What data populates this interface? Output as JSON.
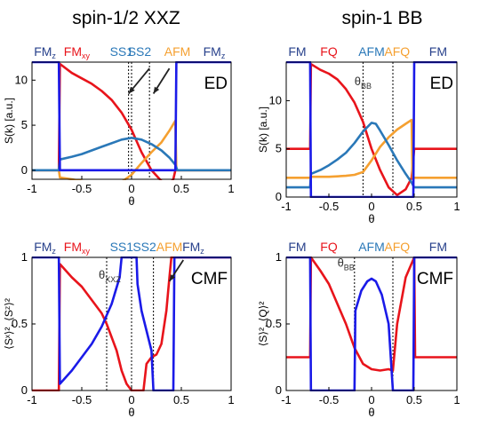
{
  "column_titles": [
    "spin-1/2 XXZ",
    "spin-1 BB"
  ],
  "colors": {
    "red": "#e8141b",
    "orange": "#f5a030",
    "steel": "#2a78b8",
    "blue": "#1a1ae8",
    "navy": "#27408b",
    "black": "#000000"
  },
  "chart_data": [
    {
      "type": "line",
      "panel": "top-left",
      "tag": "ED",
      "ylabel": "S(k) [a.u.]",
      "xlabel": "θ",
      "xlim": [
        -1,
        1
      ],
      "ylim": [
        -1,
        12
      ],
      "xticks": [
        -1,
        -0.5,
        0,
        0.5,
        1
      ],
      "xtick_labels": [
        "-1",
        "-0.5",
        "0",
        "0.5",
        "1"
      ],
      "yticks": [
        0,
        5,
        10
      ],
      "ytick_labels": [
        "0",
        "5",
        "10"
      ],
      "phases": [
        {
          "label": "FM",
          "sub": "z",
          "x": -0.87,
          "color": "#27408b"
        },
        {
          "label": "FM",
          "sub": "xy",
          "x": -0.55,
          "color": "#e8141b"
        },
        {
          "label": "SS1",
          "sub": "",
          "x": -0.1,
          "color": "#2a78b8"
        },
        {
          "label": "SS2",
          "sub": "",
          "x": 0.08,
          "color": "#2a78b8"
        },
        {
          "label": "AFM",
          "sub": "",
          "x": 0.46,
          "color": "#f5a030"
        },
        {
          "label": "FM",
          "sub": "z",
          "x": 0.83,
          "color": "#27408b"
        }
      ],
      "vlines": [
        -0.03,
        0.0,
        0.18
      ],
      "arrows": [
        {
          "from": [
            0.18,
            11.3
          ],
          "to": [
            -0.03,
            8.5
          ]
        },
        {
          "from": [
            0.38,
            11.3
          ],
          "to": [
            0.22,
            8.5
          ]
        }
      ],
      "series": [
        {
          "color": "#e8141b",
          "points": [
            [
              -1,
              0
            ],
            [
              -0.73,
              0
            ],
            [
              -0.72,
              11.8
            ],
            [
              -0.6,
              10.8
            ],
            [
              -0.5,
              10.2
            ],
            [
              -0.4,
              9.6
            ],
            [
              -0.3,
              8.8
            ],
            [
              -0.2,
              7.8
            ],
            [
              -0.1,
              6.4
            ],
            [
              0,
              4.5
            ],
            [
              0.1,
              2.0
            ],
            [
              0.2,
              0.0
            ],
            [
              0.3,
              -1.2
            ],
            [
              0.38,
              -1.5
            ],
            [
              0.42,
              -1.0
            ],
            [
              0.44,
              0
            ],
            [
              1,
              0
            ]
          ]
        },
        {
          "color": "#f5a030",
          "points": [
            [
              -1,
              0
            ],
            [
              -0.73,
              0
            ],
            [
              -0.72,
              -0.8
            ],
            [
              -0.6,
              -1.0
            ],
            [
              -0.5,
              -1.2
            ],
            [
              -0.4,
              -1.4
            ],
            [
              -0.3,
              -1.6
            ],
            [
              -0.2,
              -1.6
            ],
            [
              -0.1,
              -1.3
            ],
            [
              0,
              -0.5
            ],
            [
              0.1,
              0.8
            ],
            [
              0.2,
              2.0
            ],
            [
              0.3,
              3.1
            ],
            [
              0.38,
              4.4
            ],
            [
              0.44,
              5.5
            ],
            [
              0.45,
              0
            ],
            [
              1,
              0
            ]
          ]
        },
        {
          "color": "#2a78b8",
          "points": [
            [
              -1,
              0
            ],
            [
              -0.73,
              0
            ],
            [
              -0.72,
              1.2
            ],
            [
              -0.6,
              1.5
            ],
            [
              -0.5,
              1.8
            ],
            [
              -0.4,
              2.2
            ],
            [
              -0.3,
              2.6
            ],
            [
              -0.2,
              3.0
            ],
            [
              -0.1,
              3.4
            ],
            [
              0,
              3.6
            ],
            [
              0.1,
              3.4
            ],
            [
              0.2,
              2.9
            ],
            [
              0.3,
              2.2
            ],
            [
              0.38,
              1.4
            ],
            [
              0.44,
              0.6
            ],
            [
              0.46,
              0
            ],
            [
              1,
              0
            ]
          ]
        },
        {
          "color": "#1a1ae8",
          "points": [
            [
              -1,
              12
            ],
            [
              -0.73,
              12
            ],
            [
              -0.72,
              0
            ],
            [
              0.44,
              0
            ],
            [
              0.45,
              12
            ],
            [
              1,
              12
            ]
          ]
        }
      ],
      "notes": []
    },
    {
      "type": "line",
      "panel": "top-right",
      "tag": "ED",
      "ylabel": "S(k) [a.u.]",
      "xlabel": "θ",
      "xlim": [
        -1,
        1
      ],
      "ylim": [
        0,
        14
      ],
      "xticks": [
        -1,
        -0.5,
        0,
        0.5,
        1
      ],
      "xtick_labels": [
        "-1",
        "-0.5",
        "0",
        "0.5",
        "1"
      ],
      "yticks": [
        0,
        5,
        10
      ],
      "ytick_labels": [
        "0",
        "5",
        "10"
      ],
      "phases": [
        {
          "label": "FM",
          "sub": "",
          "x": -0.87,
          "color": "#27408b"
        },
        {
          "label": "FQ",
          "sub": "",
          "x": -0.5,
          "color": "#e8141b"
        },
        {
          "label": "AFM",
          "sub": "",
          "x": 0.0,
          "color": "#2a78b8"
        },
        {
          "label": "AFQ",
          "sub": "",
          "x": 0.3,
          "color": "#f5a030"
        },
        {
          "label": "FM",
          "sub": "",
          "x": 0.78,
          "color": "#27408b"
        }
      ],
      "vlines": [
        -0.1,
        0.25
      ],
      "arrows": [],
      "series": [
        {
          "color": "#e8141b",
          "points": [
            [
              -1,
              5
            ],
            [
              -0.72,
              5
            ],
            [
              -0.71,
              13.8
            ],
            [
              -0.6,
              13.2
            ],
            [
              -0.5,
              12.8
            ],
            [
              -0.4,
              12.2
            ],
            [
              -0.3,
              11.2
            ],
            [
              -0.2,
              9.8
            ],
            [
              -0.1,
              7.8
            ],
            [
              0,
              5.0
            ],
            [
              0.1,
              2.8
            ],
            [
              0.2,
              1.0
            ],
            [
              0.3,
              0.2
            ],
            [
              0.4,
              0.8
            ],
            [
              0.47,
              2.0
            ],
            [
              0.5,
              5
            ],
            [
              1,
              5
            ]
          ]
        },
        {
          "color": "#f5a030",
          "points": [
            [
              -1,
              2
            ],
            [
              -0.72,
              2
            ],
            [
              -0.71,
              2.1
            ],
            [
              -0.5,
              2.1
            ],
            [
              -0.3,
              2.2
            ],
            [
              -0.2,
              2.3
            ],
            [
              -0.1,
              2.6
            ],
            [
              0,
              3.8
            ],
            [
              0.1,
              5.2
            ],
            [
              0.2,
              6.2
            ],
            [
              0.3,
              7.0
            ],
            [
              0.4,
              7.6
            ],
            [
              0.47,
              8.0
            ],
            [
              0.48,
              2
            ],
            [
              1,
              2
            ]
          ]
        },
        {
          "color": "#2a78b8",
          "points": [
            [
              -1,
              1
            ],
            [
              -0.72,
              1
            ],
            [
              -0.71,
              2.4
            ],
            [
              -0.6,
              2.8
            ],
            [
              -0.5,
              3.3
            ],
            [
              -0.4,
              3.9
            ],
            [
              -0.3,
              4.6
            ],
            [
              -0.2,
              5.6
            ],
            [
              -0.1,
              6.8
            ],
            [
              0,
              7.7
            ],
            [
              0.05,
              7.6
            ],
            [
              0.1,
              6.9
            ],
            [
              0.2,
              5.4
            ],
            [
              0.3,
              3.8
            ],
            [
              0.4,
              2.4
            ],
            [
              0.47,
              1.5
            ],
            [
              0.5,
              1
            ],
            [
              1,
              1
            ]
          ]
        },
        {
          "color": "#1a1ae8",
          "points": [
            [
              -1,
              14
            ],
            [
              -0.72,
              14
            ],
            [
              -0.71,
              0
            ],
            [
              0.49,
              0
            ],
            [
              0.5,
              14
            ],
            [
              1,
              14
            ]
          ]
        }
      ],
      "notes": [
        {
          "text": "θ",
          "sub": "BB",
          "x": -0.1,
          "y": 11.6
        }
      ]
    },
    {
      "type": "line",
      "panel": "bottom-left",
      "tag": "CMF",
      "ylabel": "⟨Sˣ⟩², ⟨Sᶻ⟩²",
      "xlabel": "θ",
      "xlim": [
        -1,
        1
      ],
      "ylim": [
        0,
        1
      ],
      "xticks": [
        -1,
        -0.5,
        0,
        0.5,
        1
      ],
      "xtick_labels": [
        "-1",
        "-0.5",
        "0",
        "0.5",
        "1"
      ],
      "yticks": [
        0,
        0.5,
        1
      ],
      "ytick_labels": [
        "0",
        "0.5",
        "1"
      ],
      "phases": [
        {
          "label": "FM",
          "sub": "z",
          "x": -0.87,
          "color": "#27408b"
        },
        {
          "label": "FM",
          "sub": "xy",
          "x": -0.55,
          "color": "#e8141b"
        },
        {
          "label": "SS1",
          "sub": "",
          "x": -0.1,
          "color": "#2a78b8"
        },
        {
          "label": "SS2",
          "sub": "",
          "x": 0.13,
          "color": "#2a78b8"
        },
        {
          "label": "AFM",
          "sub": "",
          "x": 0.38,
          "color": "#f5a030"
        },
        {
          "label": "FM",
          "sub": "z",
          "x": 0.62,
          "color": "#27408b"
        }
      ],
      "vlines": [
        -0.25,
        0.0,
        0.22
      ],
      "arrows": [
        {
          "from": [
            0.52,
            0.98
          ],
          "to": [
            0.38,
            0.82
          ]
        }
      ],
      "series": [
        {
          "color": "#e8141b",
          "points": [
            [
              -1,
              0
            ],
            [
              -0.73,
              0
            ],
            [
              -0.72,
              0.95
            ],
            [
              -0.6,
              0.85
            ],
            [
              -0.5,
              0.78
            ],
            [
              -0.4,
              0.68
            ],
            [
              -0.3,
              0.58
            ],
            [
              -0.25,
              0.5
            ],
            [
              -0.2,
              0.4
            ],
            [
              -0.15,
              0.3
            ],
            [
              -0.1,
              0.15
            ],
            [
              -0.05,
              0.05
            ],
            [
              0,
              0
            ],
            [
              0.12,
              0
            ],
            [
              0.15,
              0.2
            ],
            [
              0.2,
              0.25
            ],
            [
              0.25,
              0.27
            ],
            [
              0.3,
              0.35
            ],
            [
              0.35,
              0.6
            ],
            [
              0.38,
              0.85
            ],
            [
              0.4,
              1
            ],
            [
              1,
              1
            ]
          ]
        },
        {
          "color": "#1a1ae8",
          "points": [
            [
              -1,
              1
            ],
            [
              -0.73,
              1
            ],
            [
              -0.72,
              0.05
            ],
            [
              -0.6,
              0.15
            ],
            [
              -0.5,
              0.25
            ],
            [
              -0.4,
              0.35
            ],
            [
              -0.3,
              0.48
            ],
            [
              -0.2,
              0.65
            ],
            [
              -0.12,
              0.85
            ],
            [
              -0.1,
              1
            ],
            [
              0.05,
              1
            ],
            [
              0.06,
              0.8
            ],
            [
              0.1,
              0.6
            ],
            [
              0.15,
              0.45
            ],
            [
              0.2,
              0.3
            ],
            [
              0.22,
              0
            ],
            [
              0.42,
              0
            ],
            [
              0.43,
              1
            ],
            [
              1,
              1
            ]
          ]
        }
      ],
      "notes": [
        {
          "text": "θ",
          "sub": "XXZ",
          "x": -0.22,
          "y": 0.84
        }
      ]
    },
    {
      "type": "line",
      "panel": "bottom-right",
      "tag": "CMF",
      "ylabel": "⟨S⟩², ⟨Q⟩²",
      "xlabel": "θ",
      "xlim": [
        -1,
        1
      ],
      "ylim": [
        0,
        1
      ],
      "xticks": [
        -1,
        -0.5,
        0,
        0.5,
        1
      ],
      "xtick_labels": [
        "-1",
        "-0.5",
        "0",
        "0.5",
        "1"
      ],
      "yticks": [
        0,
        0.5,
        1
      ],
      "ytick_labels": [
        "0",
        "0.5",
        "1"
      ],
      "phases": [
        {
          "label": "FM",
          "sub": "",
          "x": -0.87,
          "color": "#27408b"
        },
        {
          "label": "FQ",
          "sub": "",
          "x": -0.5,
          "color": "#e8141b"
        },
        {
          "label": "AFM",
          "sub": "",
          "x": 0.0,
          "color": "#2a78b8"
        },
        {
          "label": "AFQ",
          "sub": "",
          "x": 0.3,
          "color": "#f5a030"
        },
        {
          "label": "FM",
          "sub": "",
          "x": 0.78,
          "color": "#27408b"
        }
      ],
      "vlines": [
        -0.2,
        0.25
      ],
      "arrows": [],
      "series": [
        {
          "color": "#e8141b",
          "points": [
            [
              -1,
              0.25
            ],
            [
              -0.72,
              0.25
            ],
            [
              -0.71,
              1
            ],
            [
              -0.6,
              0.9
            ],
            [
              -0.5,
              0.8
            ],
            [
              -0.4,
              0.65
            ],
            [
              -0.3,
              0.5
            ],
            [
              -0.2,
              0.32
            ],
            [
              -0.1,
              0.2
            ],
            [
              0,
              0.16
            ],
            [
              0.1,
              0.15
            ],
            [
              0.2,
              0.16
            ],
            [
              0.25,
              0.15
            ],
            [
              0.3,
              0.5
            ],
            [
              0.4,
              0.85
            ],
            [
              0.5,
              1
            ],
            [
              0.51,
              0.25
            ],
            [
              1,
              0.25
            ]
          ]
        },
        {
          "color": "#1a1ae8",
          "points": [
            [
              -1,
              1
            ],
            [
              -0.72,
              1
            ],
            [
              -0.71,
              0
            ],
            [
              -0.2,
              0
            ],
            [
              -0.19,
              0.6
            ],
            [
              -0.12,
              0.75
            ],
            [
              -0.05,
              0.82
            ],
            [
              0,
              0.84
            ],
            [
              0.05,
              0.82
            ],
            [
              0.12,
              0.72
            ],
            [
              0.2,
              0.5
            ],
            [
              0.25,
              0
            ],
            [
              0.49,
              0
            ],
            [
              0.5,
              1
            ],
            [
              1,
              1
            ]
          ]
        }
      ],
      "notes": [
        {
          "text": "θ",
          "sub": "BB",
          "x": -0.3,
          "y": 0.93
        }
      ]
    }
  ]
}
